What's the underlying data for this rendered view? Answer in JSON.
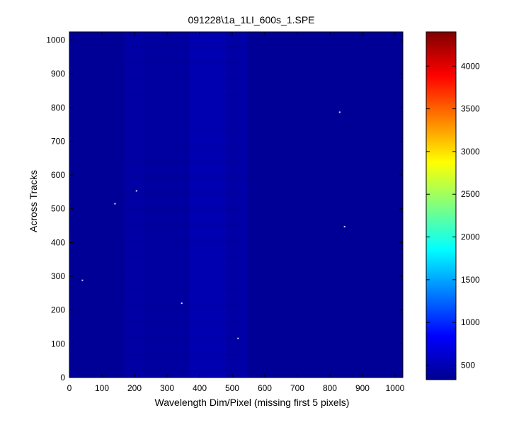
{
  "chart_data": {
    "type": "heatmap",
    "title": "091228\\1a_1LI_600s_1.SPE",
    "xlabel": "Wavelength Dim/Pixel (missing first 5 pixels)",
    "ylabel": "Across Tracks",
    "xlim": [
      0,
      1024
    ],
    "ylim": [
      0,
      1024
    ],
    "x_ticks": [
      0,
      100,
      200,
      300,
      400,
      500,
      600,
      700,
      800,
      900,
      1000
    ],
    "y_ticks": [
      0,
      100,
      200,
      300,
      400,
      500,
      600,
      700,
      800,
      900,
      1000
    ],
    "colormap": "jet",
    "color_range": [
      330,
      4400
    ],
    "colorbar_ticks": [
      500,
      1000,
      1500,
      2000,
      2500,
      3000,
      3500,
      4000
    ],
    "background_value": 420,
    "column_bands": [
      {
        "x_start": 170,
        "x_end": 230,
        "value": 520
      },
      {
        "x_start": 230,
        "x_end": 370,
        "value": 490
      },
      {
        "x_start": 370,
        "x_end": 480,
        "value": 600
      },
      {
        "x_start": 480,
        "x_end": 530,
        "value": 520
      },
      {
        "x_start": 530,
        "x_end": 545,
        "value": 560
      }
    ],
    "hot_pixels": [
      {
        "x": 40,
        "y": 288
      },
      {
        "x": 140,
        "y": 515
      },
      {
        "x": 206,
        "y": 553
      },
      {
        "x": 345,
        "y": 220
      },
      {
        "x": 518,
        "y": 116
      },
      {
        "x": 830,
        "y": 786
      },
      {
        "x": 845,
        "y": 447
      }
    ],
    "grid": false,
    "legend": "colorbar-right"
  }
}
